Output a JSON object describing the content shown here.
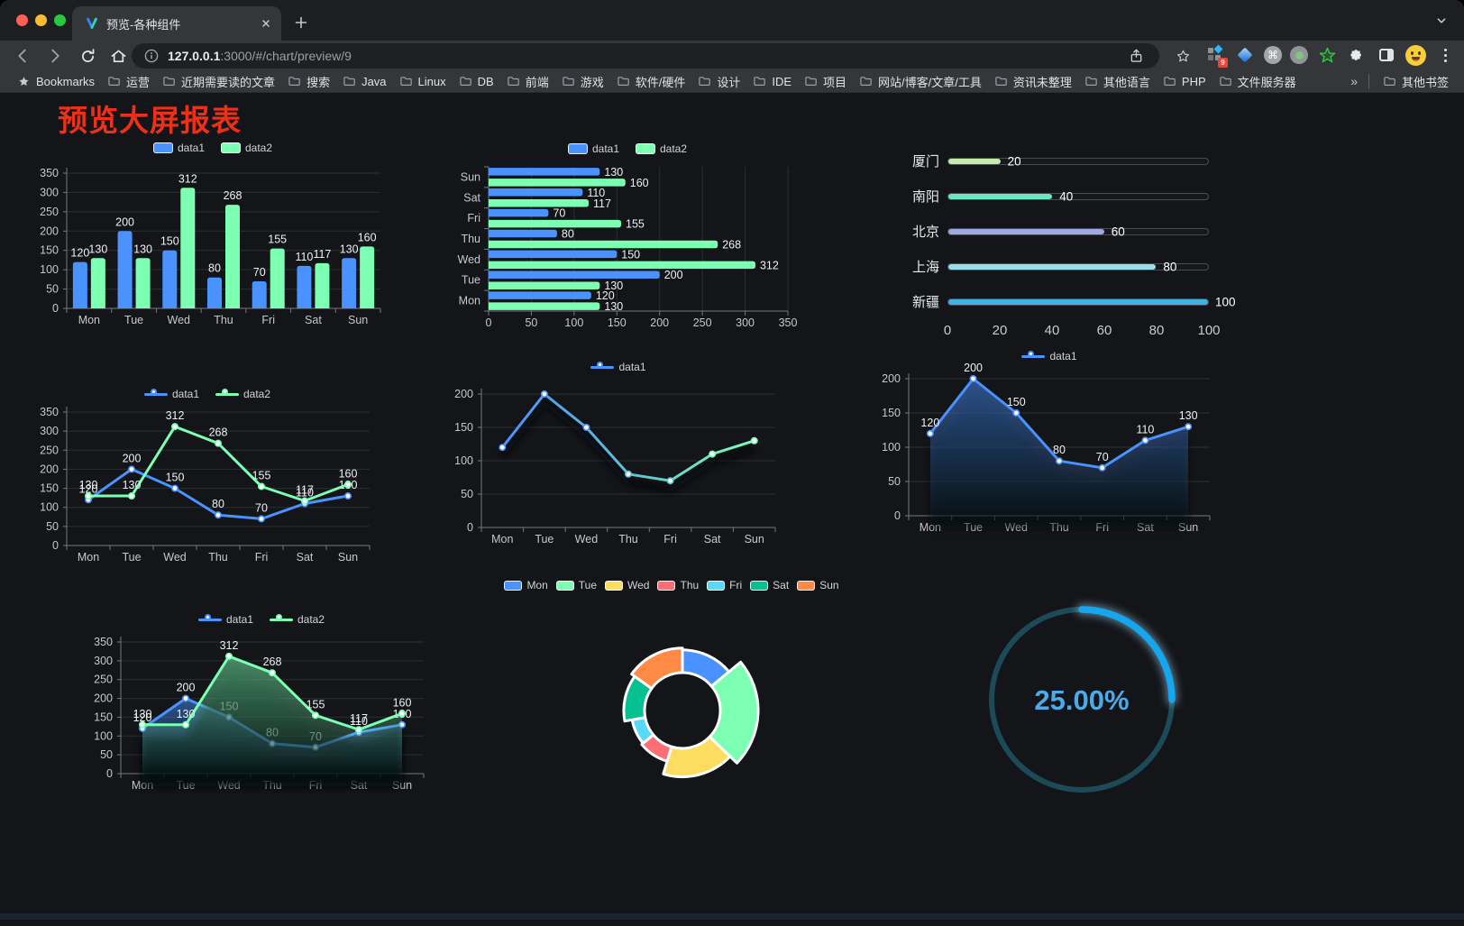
{
  "browser": {
    "traffic_lights": [
      "#ff5f57",
      "#febc2e",
      "#28c840"
    ],
    "tab_title": "预览-各种组件",
    "url_host": "127.0.0.1",
    "url_rest": ":3000/#/chart/preview/9",
    "bookmarks_label": "Bookmarks",
    "bookmark_items": [
      "运营",
      "近期需要读的文章",
      "搜索",
      "Java",
      "Linux",
      "DB",
      "前端",
      "游戏",
      "软件/硬件",
      "设计",
      "IDE",
      "项目",
      "网站/博客/文章/工具",
      "资讯未整理",
      "其他语言",
      "PHP",
      "文件服务器"
    ],
    "bookmarks_overflow": "»",
    "other_bookmarks_label": "其他书签",
    "extension_badge": "9",
    "extension_icons": [
      "apps-grid",
      "blue-gem",
      "command-circle",
      "green-dot-circle",
      "green-star",
      "puzzle-piece",
      "side-panel",
      "profile-emoji",
      "menu-dots"
    ]
  },
  "page": {
    "title": "预览大屏报表",
    "title_color": "#ee3018",
    "background": "#141519"
  },
  "chart_data": [
    {
      "id": "bar-days",
      "type": "bar",
      "legend_position": "top",
      "grid": true,
      "data_labels": true,
      "categories": [
        "Mon",
        "Tue",
        "Wed",
        "Thu",
        "Fri",
        "Sat",
        "Sun"
      ],
      "series": [
        {
          "name": "data1",
          "color": "#4992ff",
          "values": [
            120,
            200,
            150,
            80,
            70,
            110,
            130
          ]
        },
        {
          "name": "data2",
          "color": "#7cffb2",
          "values": [
            130,
            130,
            312,
            268,
            155,
            117,
            160
          ]
        }
      ],
      "ylim": [
        0,
        350
      ],
      "ytick_step": 50
    },
    {
      "id": "hbar-days",
      "type": "bar-horizontal",
      "legend_position": "top",
      "grid": true,
      "data_labels": true,
      "categories": [
        "Mon",
        "Tue",
        "Wed",
        "Thu",
        "Fri",
        "Sat",
        "Sun"
      ],
      "series": [
        {
          "name": "data1",
          "color": "#4992ff",
          "values": [
            120,
            200,
            150,
            80,
            70,
            110,
            130
          ]
        },
        {
          "name": "data2",
          "color": "#7cffb2",
          "values": [
            130,
            130,
            312,
            268,
            155,
            117,
            160
          ]
        }
      ],
      "xlim": [
        0,
        350
      ],
      "xtick_step": 50
    },
    {
      "id": "progress-cities",
      "type": "progress-bars",
      "max": 100,
      "xticks": [
        0,
        20,
        40,
        60,
        80,
        100
      ],
      "items": [
        {
          "label": "厦门",
          "value": 20,
          "color": "#c4ebad"
        },
        {
          "label": "南阳",
          "value": 40,
          "color": "#6be6c1"
        },
        {
          "label": "北京",
          "value": 60,
          "color": "#a0a7e6"
        },
        {
          "label": "上海",
          "value": 80,
          "color": "#96dee8"
        },
        {
          "label": "新疆",
          "value": 100,
          "color": "#3fb1e3"
        }
      ]
    },
    {
      "id": "line-days-dual",
      "type": "line",
      "legend_position": "top",
      "grid": true,
      "data_labels": true,
      "categories": [
        "Mon",
        "Tue",
        "Wed",
        "Thu",
        "Fri",
        "Sat",
        "Sun"
      ],
      "series": [
        {
          "name": "data1",
          "color": "#4992ff",
          "values": [
            120,
            200,
            150,
            80,
            70,
            110,
            130
          ]
        },
        {
          "name": "data2",
          "color": "#7cffb2",
          "values": [
            130,
            130,
            312,
            268,
            155,
            117,
            160
          ]
        }
      ],
      "ylim": [
        0,
        350
      ],
      "ytick_step": 50
    },
    {
      "id": "line-days-gradient",
      "type": "line",
      "legend_position": "top",
      "grid": true,
      "data_labels": false,
      "shadow": true,
      "categories": [
        "Mon",
        "Tue",
        "Wed",
        "Thu",
        "Fri",
        "Sat",
        "Sun"
      ],
      "series": [
        {
          "name": "data1",
          "color": "#4992ff",
          "gradient": [
            "#4992ff",
            "#5ec1d6",
            "#7cffb2"
          ],
          "values": [
            120,
            200,
            150,
            80,
            70,
            110,
            130
          ]
        }
      ],
      "ylim": [
        0,
        200
      ],
      "ytick_step": 50
    },
    {
      "id": "area-days-single",
      "type": "area",
      "legend_position": "top",
      "grid": true,
      "data_labels": true,
      "shadow": true,
      "categories": [
        "Mon",
        "Tue",
        "Wed",
        "Thu",
        "Fri",
        "Sat",
        "Sun"
      ],
      "series": [
        {
          "name": "data1",
          "color": "#4992ff",
          "values": [
            120,
            200,
            150,
            80,
            70,
            110,
            130
          ]
        }
      ],
      "ylim": [
        0,
        200
      ],
      "ytick_step": 50
    },
    {
      "id": "area-days-dual",
      "type": "area",
      "legend_position": "top",
      "grid": true,
      "data_labels": true,
      "shadow": true,
      "categories": [
        "Mon",
        "Tue",
        "Wed",
        "Thu",
        "Fri",
        "Sat",
        "Sun"
      ],
      "series": [
        {
          "name": "data1",
          "color": "#4992ff",
          "values": [
            120,
            200,
            150,
            80,
            70,
            110,
            130
          ]
        },
        {
          "name": "data2",
          "color": "#7cffb2",
          "values": [
            130,
            130,
            312,
            268,
            155,
            117,
            160
          ]
        }
      ],
      "ylim": [
        0,
        350
      ],
      "ytick_step": 50
    },
    {
      "id": "donut-days",
      "type": "pie",
      "subtype": "rose-donut",
      "legend_position": "top",
      "slices": [
        {
          "label": "Mon",
          "value": 120,
          "color": "#4992ff"
        },
        {
          "label": "Tue",
          "value": 200,
          "color": "#7cffb2"
        },
        {
          "label": "Wed",
          "value": 150,
          "color": "#fddd60"
        },
        {
          "label": "Thu",
          "value": 80,
          "color": "#ff6e76"
        },
        {
          "label": "Fri",
          "value": 70,
          "color": "#58d9f9"
        },
        {
          "label": "Sat",
          "value": 110,
          "color": "#05c091"
        },
        {
          "label": "Sun",
          "value": 130,
          "color": "#ff8a45"
        }
      ]
    },
    {
      "id": "gauge-progress",
      "type": "gauge",
      "value": 25,
      "max": 100,
      "label": "25.00%",
      "arc_color": "#14a7f0",
      "track_color": "#1d4a58",
      "text_color": "#4aabe8"
    }
  ]
}
